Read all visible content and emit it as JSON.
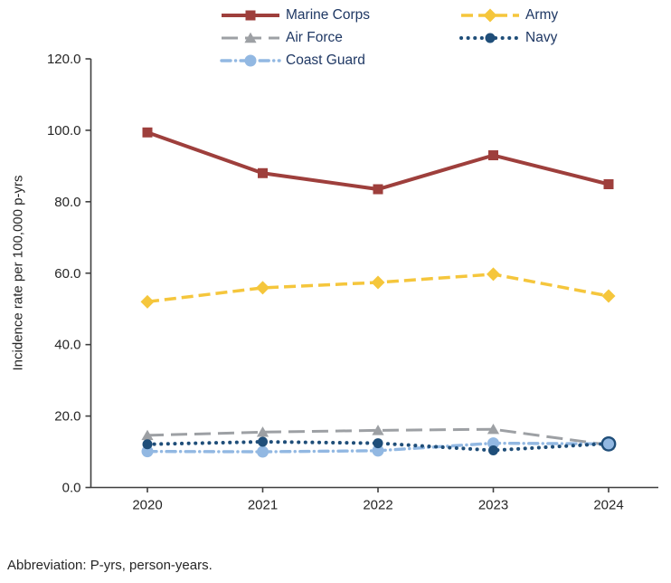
{
  "chart_data": {
    "type": "line",
    "x": [
      2020,
      2021,
      2022,
      2023,
      2024
    ],
    "series": [
      {
        "id": "marine",
        "name": "Marine Corps",
        "color": "#9E3F3C",
        "style": "solid",
        "marker": "square",
        "values": [
          99.4,
          88.0,
          83.5,
          93.0,
          84.9
        ]
      },
      {
        "id": "army",
        "name": "Army",
        "color": "#F5C63C",
        "style": "dashed",
        "marker": "diamond",
        "values": [
          52.0,
          55.9,
          57.4,
          59.7,
          53.6
        ]
      },
      {
        "id": "airforce",
        "name": "Air Force",
        "color": "#9DA0A4",
        "style": "longdash",
        "marker": "triangle",
        "values": [
          14.6,
          15.5,
          16.0,
          16.3,
          11.9
        ]
      },
      {
        "id": "navy",
        "name": "Navy",
        "color": "#1F4E79",
        "style": "dotted",
        "marker": "circle",
        "values": [
          12.1,
          12.8,
          12.4,
          10.4,
          12.3
        ]
      },
      {
        "id": "coastguard",
        "name": "Coast Guard",
        "color": "#92B8E2",
        "style": "dashdot",
        "marker": "circle-large",
        "values": [
          10.1,
          10.0,
          10.3,
          12.4,
          12.2
        ],
        "last_point_ring": true
      }
    ],
    "title": "",
    "xlabel": "",
    "ylabel": "Incidence rate per 100,000 p-yrs",
    "ylim": [
      0,
      120
    ],
    "y_ticks": [
      0,
      20,
      40,
      60,
      80,
      100,
      120
    ],
    "y_tick_decimals": 1,
    "grid": false,
    "legend_position": "top"
  },
  "footnote": "Abbreviation: P-yrs, person-years."
}
